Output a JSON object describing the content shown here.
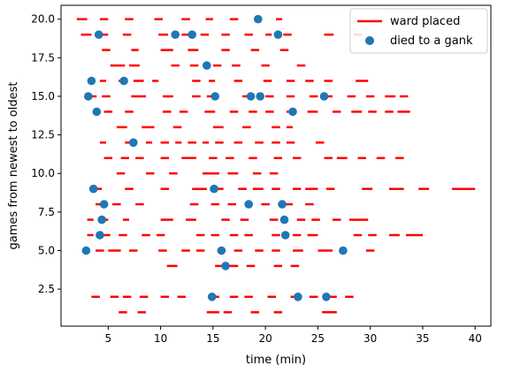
{
  "chart_data": {
    "type": "scatter",
    "xlabel": "time (min)",
    "ylabel": "games from newest to oldest",
    "xlim": [
      0.5,
      41.5
    ],
    "ylim": [
      0.1,
      20.9
    ],
    "x_ticks": [
      5,
      10,
      15,
      20,
      25,
      30,
      35,
      40
    ],
    "y_ticks": [
      2.5,
      5.0,
      7.5,
      10.0,
      12.5,
      15.0,
      17.5,
      20.0
    ],
    "x_tick_labels": [
      "5",
      "10",
      "15",
      "20",
      "25",
      "30",
      "35",
      "40"
    ],
    "y_tick_labels": [
      "2.5",
      "5.0",
      "7.5",
      "10.0",
      "12.5",
      "15.0",
      "17.5",
      "20.0"
    ],
    "grid": false,
    "legend_position": "top-right",
    "legend": [
      {
        "label": "ward placed",
        "type": "line",
        "color": "#ff0000"
      },
      {
        "label": "died to a gank",
        "type": "marker",
        "color": "#1f77b4"
      }
    ],
    "ward_segments": [
      {
        "row": 20,
        "segments": [
          [
            2.0,
            3.0
          ],
          [
            4.2,
            5.0
          ],
          [
            6.6,
            7.4
          ],
          [
            9.4,
            10.2
          ],
          [
            12.0,
            12.8
          ],
          [
            14.3,
            15.0
          ],
          [
            16.6,
            17.4
          ],
          [
            19.0,
            19.6
          ],
          [
            21.0,
            21.6
          ]
        ]
      },
      {
        "row": 19,
        "segments": [
          [
            2.4,
            3.4
          ],
          [
            4.2,
            5.0
          ],
          [
            6.4,
            7.2
          ],
          [
            9.8,
            10.7
          ],
          [
            12.0,
            12.8
          ],
          [
            13.8,
            14.6
          ],
          [
            15.8,
            16.6
          ],
          [
            18.0,
            18.8
          ],
          [
            20.0,
            20.6
          ],
          [
            21.7,
            22.5
          ],
          [
            25.6,
            26.5
          ],
          [
            28.4,
            29.2
          ]
        ]
      },
      {
        "row": 18,
        "segments": [
          [
            4.4,
            5.2
          ],
          [
            7.2,
            7.9
          ],
          [
            10.0,
            11.2
          ],
          [
            12.6,
            13.6
          ],
          [
            15.8,
            16.6
          ],
          [
            18.6,
            19.4
          ],
          [
            21.4,
            22.2
          ]
        ]
      },
      {
        "row": 17,
        "segments": [
          [
            5.2,
            6.6
          ],
          [
            7.0,
            8.0
          ],
          [
            11.0,
            11.8
          ],
          [
            12.8,
            13.6
          ],
          [
            15.0,
            15.8
          ],
          [
            16.8,
            17.6
          ],
          [
            19.6,
            20.4
          ],
          [
            23.0,
            23.8
          ]
        ]
      },
      {
        "row": 16,
        "segments": [
          [
            4.2,
            4.8
          ],
          [
            6.0,
            6.8
          ],
          [
            7.4,
            8.4
          ],
          [
            9.2,
            9.8
          ],
          [
            13.0,
            13.8
          ],
          [
            14.6,
            15.2
          ],
          [
            17.0,
            17.8
          ],
          [
            19.8,
            20.6
          ],
          [
            22.0,
            22.8
          ],
          [
            23.8,
            24.6
          ],
          [
            25.6,
            26.4
          ],
          [
            28.6,
            29.8
          ]
        ]
      },
      {
        "row": 15,
        "segments": [
          [
            3.2,
            3.9
          ],
          [
            4.4,
            5.2
          ],
          [
            7.2,
            8.6
          ],
          [
            10.2,
            11.2
          ],
          [
            13.0,
            13.8
          ],
          [
            14.4,
            15.4
          ],
          [
            17.8,
            18.8
          ],
          [
            20.0,
            20.8
          ],
          [
            22.0,
            22.8
          ],
          [
            24.2,
            25.0
          ],
          [
            25.6,
            26.4
          ],
          [
            27.8,
            28.6
          ],
          [
            29.6,
            30.4
          ],
          [
            31.4,
            32.4
          ],
          [
            32.8,
            33.6
          ]
        ]
      },
      {
        "row": 14,
        "segments": [
          [
            4.6,
            5.4
          ],
          [
            6.6,
            7.4
          ],
          [
            10.2,
            11.0
          ],
          [
            11.8,
            12.6
          ],
          [
            14.2,
            15.2
          ],
          [
            16.6,
            17.4
          ],
          [
            18.4,
            19.2
          ],
          [
            20.0,
            20.8
          ],
          [
            22.0,
            22.8
          ],
          [
            24.0,
            25.0
          ],
          [
            26.4,
            27.2
          ],
          [
            28.2,
            29.2
          ],
          [
            29.8,
            30.6
          ],
          [
            31.4,
            32.2
          ],
          [
            32.6,
            33.8
          ]
        ]
      },
      {
        "row": 13,
        "segments": [
          [
            5.8,
            6.8
          ],
          [
            8.2,
            9.4
          ],
          [
            11.2,
            12.0
          ],
          [
            15.0,
            16.0
          ],
          [
            17.8,
            18.6
          ],
          [
            20.6,
            21.4
          ],
          [
            22.0,
            22.6
          ]
        ]
      },
      {
        "row": 12,
        "segments": [
          [
            4.2,
            4.8
          ],
          [
            6.6,
            7.4
          ],
          [
            8.6,
            9.2
          ],
          [
            10.0,
            10.8
          ],
          [
            11.4,
            12.0
          ],
          [
            12.6,
            13.4
          ],
          [
            14.0,
            14.6
          ],
          [
            15.2,
            16.0
          ],
          [
            17.0,
            17.8
          ],
          [
            19.0,
            19.8
          ],
          [
            20.6,
            21.4
          ],
          [
            22.0,
            22.8
          ],
          [
            24.8,
            25.6
          ]
        ]
      },
      {
        "row": 11,
        "segments": [
          [
            4.6,
            5.4
          ],
          [
            6.2,
            7.0
          ],
          [
            7.6,
            8.4
          ],
          [
            10.0,
            10.8
          ],
          [
            12.0,
            13.4
          ],
          [
            14.6,
            15.4
          ],
          [
            16.2,
            17.0
          ],
          [
            18.4,
            19.2
          ],
          [
            20.8,
            21.6
          ],
          [
            22.6,
            23.4
          ],
          [
            25.6,
            26.4
          ],
          [
            26.8,
            27.8
          ],
          [
            28.8,
            29.6
          ],
          [
            30.6,
            31.4
          ],
          [
            32.4,
            33.2
          ]
        ]
      },
      {
        "row": 10,
        "segments": [
          [
            5.8,
            6.6
          ],
          [
            8.6,
            9.4
          ],
          [
            10.8,
            11.6
          ],
          [
            14.0,
            15.6
          ],
          [
            16.4,
            17.4
          ],
          [
            18.8,
            19.6
          ],
          [
            20.4,
            21.2
          ]
        ]
      },
      {
        "row": 9,
        "segments": [
          [
            3.6,
            4.4
          ],
          [
            6.6,
            7.4
          ],
          [
            10.0,
            10.8
          ],
          [
            13.0,
            14.4
          ],
          [
            14.8,
            16.0
          ],
          [
            17.4,
            18.2
          ],
          [
            18.8,
            19.8
          ],
          [
            20.6,
            21.4
          ],
          [
            22.6,
            23.4
          ],
          [
            23.8,
            25.0
          ],
          [
            25.8,
            26.6
          ],
          [
            29.2,
            30.2
          ],
          [
            31.8,
            33.2
          ],
          [
            34.6,
            35.6
          ],
          [
            37.8,
            40.0
          ]
        ]
      },
      {
        "row": 8,
        "segments": [
          [
            3.8,
            4.4
          ],
          [
            5.4,
            6.2
          ],
          [
            7.6,
            8.4
          ],
          [
            12.8,
            13.6
          ],
          [
            14.8,
            15.6
          ],
          [
            16.4,
            17.2
          ],
          [
            19.6,
            20.4
          ],
          [
            21.2,
            22.6
          ],
          [
            23.8,
            24.6
          ]
        ]
      },
      {
        "row": 7,
        "segments": [
          [
            3.0,
            3.6
          ],
          [
            4.2,
            5.0
          ],
          [
            6.4,
            7.0
          ],
          [
            10.0,
            11.2
          ],
          [
            12.4,
            13.4
          ],
          [
            15.8,
            16.6
          ],
          [
            17.6,
            18.4
          ],
          [
            20.4,
            21.2
          ],
          [
            23.0,
            23.8
          ],
          [
            24.4,
            25.2
          ],
          [
            26.4,
            27.2
          ],
          [
            28.0,
            29.8
          ]
        ]
      },
      {
        "row": 6,
        "segments": [
          [
            3.0,
            3.6
          ],
          [
            4.4,
            5.2
          ],
          [
            6.0,
            6.8
          ],
          [
            8.2,
            9.0
          ],
          [
            9.6,
            10.4
          ],
          [
            13.4,
            14.2
          ],
          [
            14.8,
            15.6
          ],
          [
            16.6,
            17.4
          ],
          [
            18.0,
            18.8
          ],
          [
            20.6,
            21.4
          ],
          [
            22.6,
            23.4
          ],
          [
            24.0,
            25.0
          ],
          [
            28.4,
            29.2
          ],
          [
            29.8,
            30.6
          ],
          [
            31.8,
            32.8
          ],
          [
            33.4,
            35.0
          ]
        ]
      },
      {
        "row": 5,
        "segments": [
          [
            3.8,
            4.6
          ],
          [
            5.0,
            6.2
          ],
          [
            7.0,
            7.8
          ],
          [
            9.8,
            10.6
          ],
          [
            12.0,
            12.8
          ],
          [
            13.4,
            14.2
          ],
          [
            15.4,
            16.2
          ],
          [
            17.0,
            17.8
          ],
          [
            19.0,
            19.8
          ],
          [
            20.6,
            21.4
          ],
          [
            22.6,
            23.6
          ],
          [
            25.0,
            26.4
          ],
          [
            29.6,
            30.4
          ]
        ]
      },
      {
        "row": 4,
        "segments": [
          [
            10.6,
            11.6
          ],
          [
            15.2,
            16.0
          ],
          [
            16.6,
            17.4
          ],
          [
            18.2,
            19.0
          ],
          [
            20.8,
            21.6
          ],
          [
            22.4,
            23.2
          ]
        ]
      },
      {
        "row": 2,
        "segments": [
          [
            3.4,
            4.2
          ],
          [
            5.2,
            6.0
          ],
          [
            6.4,
            7.2
          ],
          [
            8.0,
            8.8
          ],
          [
            10.0,
            10.8
          ],
          [
            11.6,
            12.4
          ],
          [
            14.6,
            15.6
          ],
          [
            16.6,
            17.4
          ],
          [
            18.0,
            18.8
          ],
          [
            20.2,
            21.0
          ],
          [
            22.4,
            23.2
          ],
          [
            24.2,
            25.0
          ],
          [
            26.0,
            26.8
          ],
          [
            27.6,
            28.4
          ]
        ]
      },
      {
        "row": 1,
        "segments": [
          [
            6.0,
            6.8
          ],
          [
            7.8,
            8.6
          ],
          [
            14.4,
            15.6
          ],
          [
            16.0,
            16.8
          ],
          [
            18.6,
            19.4
          ],
          [
            20.8,
            21.6
          ],
          [
            25.4,
            26.8
          ]
        ]
      }
    ],
    "ganks": [
      {
        "x": 4.1,
        "y": 19
      },
      {
        "x": 11.4,
        "y": 19
      },
      {
        "x": 13.0,
        "y": 19
      },
      {
        "x": 19.3,
        "y": 20
      },
      {
        "x": 21.2,
        "y": 19
      },
      {
        "x": 14.4,
        "y": 17
      },
      {
        "x": 3.4,
        "y": 16
      },
      {
        "x": 6.5,
        "y": 16
      },
      {
        "x": 3.1,
        "y": 15
      },
      {
        "x": 15.2,
        "y": 15
      },
      {
        "x": 18.6,
        "y": 15
      },
      {
        "x": 19.5,
        "y": 15
      },
      {
        "x": 25.6,
        "y": 15
      },
      {
        "x": 3.9,
        "y": 14
      },
      {
        "x": 22.6,
        "y": 14
      },
      {
        "x": 7.4,
        "y": 12
      },
      {
        "x": 3.6,
        "y": 9
      },
      {
        "x": 15.1,
        "y": 9
      },
      {
        "x": 4.6,
        "y": 8
      },
      {
        "x": 18.4,
        "y": 8
      },
      {
        "x": 21.6,
        "y": 8
      },
      {
        "x": 4.4,
        "y": 7
      },
      {
        "x": 21.8,
        "y": 7
      },
      {
        "x": 4.2,
        "y": 6
      },
      {
        "x": 21.9,
        "y": 6
      },
      {
        "x": 2.9,
        "y": 5
      },
      {
        "x": 15.8,
        "y": 5
      },
      {
        "x": 27.4,
        "y": 5
      },
      {
        "x": 16.2,
        "y": 4
      },
      {
        "x": 14.9,
        "y": 2
      },
      {
        "x": 23.1,
        "y": 2
      },
      {
        "x": 25.8,
        "y": 2
      }
    ]
  }
}
